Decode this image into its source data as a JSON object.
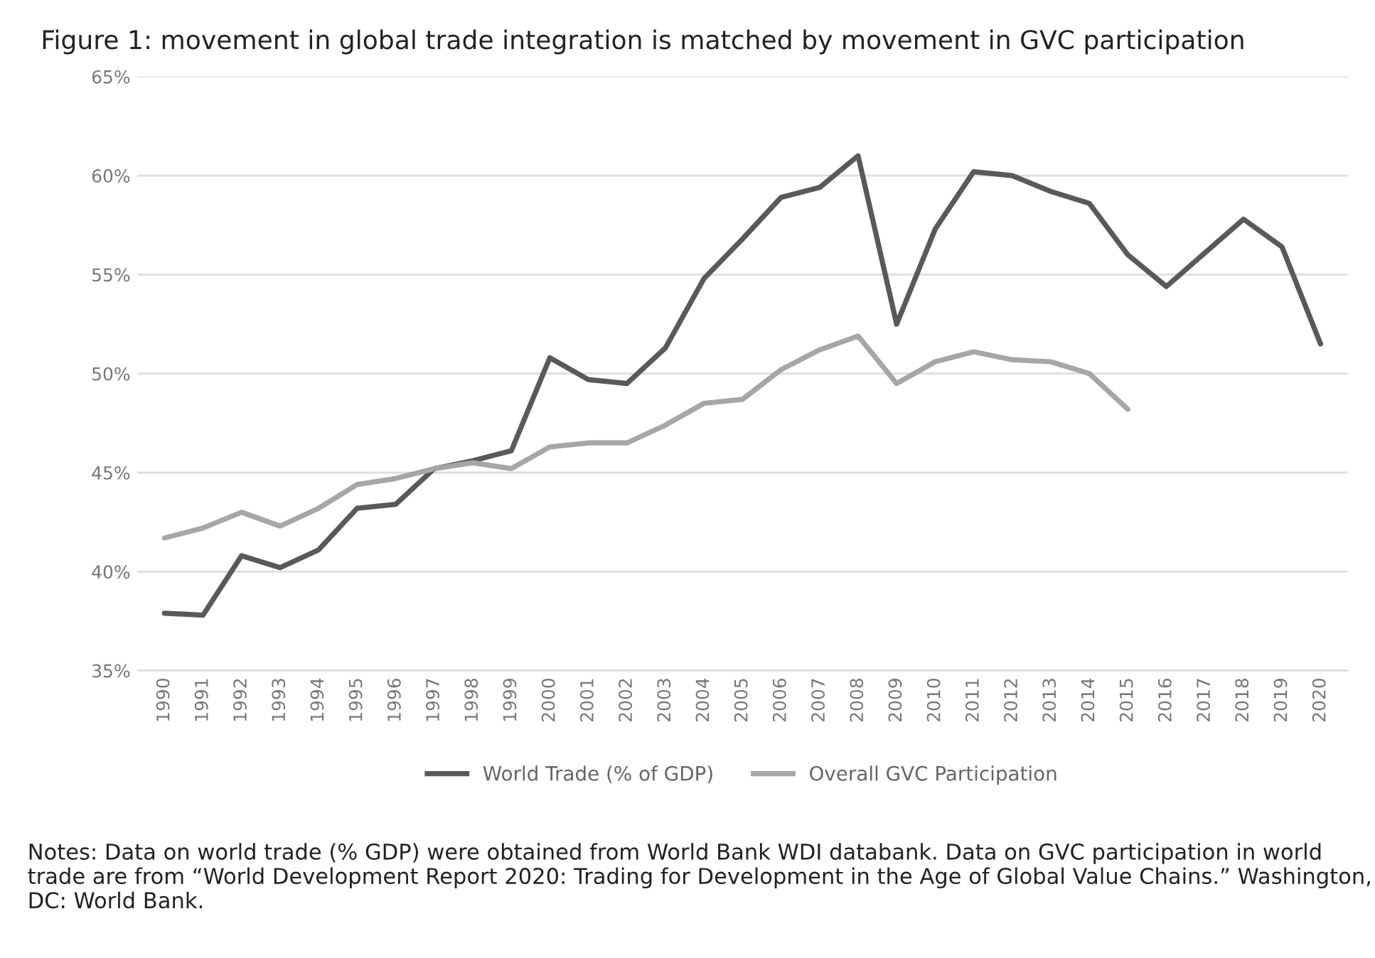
{
  "chart_data": {
    "type": "line",
    "title": "Figure 1: movement in global trade integration is matched by movement in GVC participation",
    "categories": [
      "1990",
      "1991",
      "1992",
      "1993",
      "1994",
      "1995",
      "1996",
      "1997",
      "1998",
      "1999",
      "2000",
      "2001",
      "2002",
      "2003",
      "2004",
      "2005",
      "2006",
      "2007",
      "2008",
      "2009",
      "2010",
      "2011",
      "2012",
      "2013",
      "2014",
      "2015",
      "2016",
      "2017",
      "2018",
      "2019",
      "2020"
    ],
    "series": [
      {
        "name": "World Trade (% of GDP)",
        "color": "#595959",
        "values": [
          37.9,
          37.8,
          40.8,
          40.2,
          41.1,
          43.2,
          43.4,
          45.2,
          45.6,
          46.1,
          50.8,
          49.7,
          49.5,
          51.3,
          54.8,
          56.8,
          58.9,
          59.4,
          61.0,
          52.5,
          57.3,
          60.2,
          60.0,
          59.2,
          58.6,
          56.0,
          54.4,
          56.1,
          57.8,
          56.4,
          51.5
        ]
      },
      {
        "name": "Overall GVC Participation",
        "color": "#a6a6a6",
        "values": [
          41.7,
          42.2,
          43.0,
          42.3,
          43.2,
          44.4,
          44.7,
          45.2,
          45.5,
          45.2,
          46.3,
          46.5,
          46.5,
          47.4,
          48.5,
          48.7,
          50.2,
          51.2,
          51.9,
          49.5,
          50.6,
          51.1,
          50.7,
          50.6,
          50.0,
          48.2,
          null,
          null,
          null,
          null,
          null
        ]
      }
    ],
    "ylim": [
      35,
      65
    ],
    "yticks": [
      {
        "value": 35,
        "label": "35%"
      },
      {
        "value": 40,
        "label": "40%"
      },
      {
        "value": 45,
        "label": "45%"
      },
      {
        "value": 50,
        "label": "50%"
      },
      {
        "value": 55,
        "label": "55%"
      },
      {
        "value": 60,
        "label": "60%"
      },
      {
        "value": 65,
        "label": "65%"
      }
    ],
    "grid": "y",
    "legend": "bottom",
    "marker": "none",
    "line_style": "solid",
    "annotations": [
      "Notes: Data on world trade (% GDP) were obtained from World Bank WDI databank. Data on GVC participation in world trade are from “World Development Report 2020: Trading for Development in the Age of Global Value Chains.” Washington, DC: World Bank."
    ]
  }
}
